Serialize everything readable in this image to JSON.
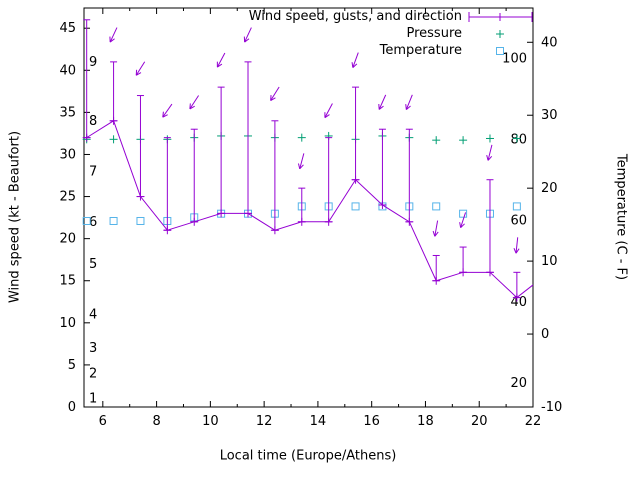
{
  "figure": {
    "x_label": "Local time (Europe/Athens)",
    "y_left_label": "Wind speed (kt - Beaufort)",
    "y_right_label": "Temperature (C - F)"
  },
  "legend": [
    {
      "label": "Wind speed, gusts, and direction",
      "series": "wind"
    },
    {
      "label": "Pressure",
      "series": "pressure"
    },
    {
      "label": "Temperature",
      "series": "temperature"
    }
  ],
  "colors": {
    "wind": "#9400d3",
    "pressure": "#009e73",
    "temperature": "#56b4e9",
    "axis": "#000000",
    "background": "#ffffff"
  },
  "chart_data": {
    "type": "line",
    "title": "",
    "xlabel": "Local time (Europe/Athens)",
    "ylabel_left": "Wind speed (kt - Beaufort)",
    "ylabel_right": "Temperature (C - F)",
    "x_range": [
      5.3,
      22
    ],
    "y_left_range": [
      0,
      47.4
    ],
    "y_right_range": [
      -10,
      44.7
    ],
    "x_ticks": [
      6,
      8,
      10,
      12,
      14,
      16,
      18,
      20,
      22
    ],
    "x_minor_ticks": [
      7,
      9,
      11,
      13,
      15,
      17,
      19,
      21
    ],
    "y_left_ticks": [
      0,
      5,
      10,
      15,
      20,
      25,
      30,
      35,
      40,
      45
    ],
    "y_right_ticks": [
      -10,
      0,
      10,
      20,
      30,
      40
    ],
    "beaufort_labels": [
      {
        "b": "1",
        "kt": 1
      },
      {
        "b": "2",
        "kt": 4
      },
      {
        "b": "3",
        "kt": 7
      },
      {
        "b": "4",
        "kt": 11
      },
      {
        "b": "5",
        "kt": 17
      },
      {
        "b": "6",
        "kt": 22
      },
      {
        "b": "7",
        "kt": 28
      },
      {
        "b": "8",
        "kt": 34
      },
      {
        "b": "9",
        "kt": 41
      }
    ],
    "fahrenheit_labels": [
      {
        "f": "20",
        "c": -6.7
      },
      {
        "f": "40",
        "c": 4.4
      },
      {
        "f": "60",
        "c": 15.6
      },
      {
        "f": "80",
        "c": 26.7
      },
      {
        "f": "100",
        "c": 37.8
      }
    ],
    "x": [
      5.4,
      6.4,
      7.4,
      8.4,
      9.4,
      10.4,
      11.4,
      12.4,
      13.4,
      14.4,
      15.4,
      16.4,
      17.4,
      18.4,
      19.4,
      20.4,
      21.4
    ],
    "series": [
      {
        "name": "wind_speed_kt",
        "values": [
          32,
          34,
          25,
          21,
          22,
          23,
          23,
          21,
          22,
          22,
          27,
          24,
          22,
          15,
          16,
          16,
          13
        ]
      },
      {
        "name": "gust_kt",
        "values": [
          46,
          41,
          37,
          32,
          33,
          38,
          41,
          34,
          26,
          32,
          38,
          33,
          33,
          18,
          19,
          27,
          16
        ]
      },
      {
        "name": "direction_toward_deg",
        "values": [
          215,
          205,
          212,
          215,
          213,
          208,
          205,
          212,
          195,
          208,
          200,
          204,
          202,
          190,
          198,
          194,
          186
        ]
      },
      {
        "name": "pressure_plot_left_axis_units",
        "values": [
          31.8,
          31.8,
          31.8,
          31.8,
          32,
          32.2,
          32.2,
          32,
          32,
          32.2,
          31.8,
          32.2,
          32,
          31.7,
          31.7,
          31.9,
          31.9
        ]
      },
      {
        "name": "temperature_c",
        "values": [
          15.5,
          15.5,
          15.5,
          15.5,
          16,
          16.5,
          16.5,
          16.5,
          17.5,
          17.5,
          17.5,
          17.5,
          17.5,
          17.5,
          16.5,
          16.5,
          17.5
        ]
      }
    ],
    "wind_line_extension": {
      "x": 22,
      "kt": 14.5
    },
    "arrow_offset_kt": 2.5,
    "grid": false,
    "legend_position": "top-right-inside"
  }
}
